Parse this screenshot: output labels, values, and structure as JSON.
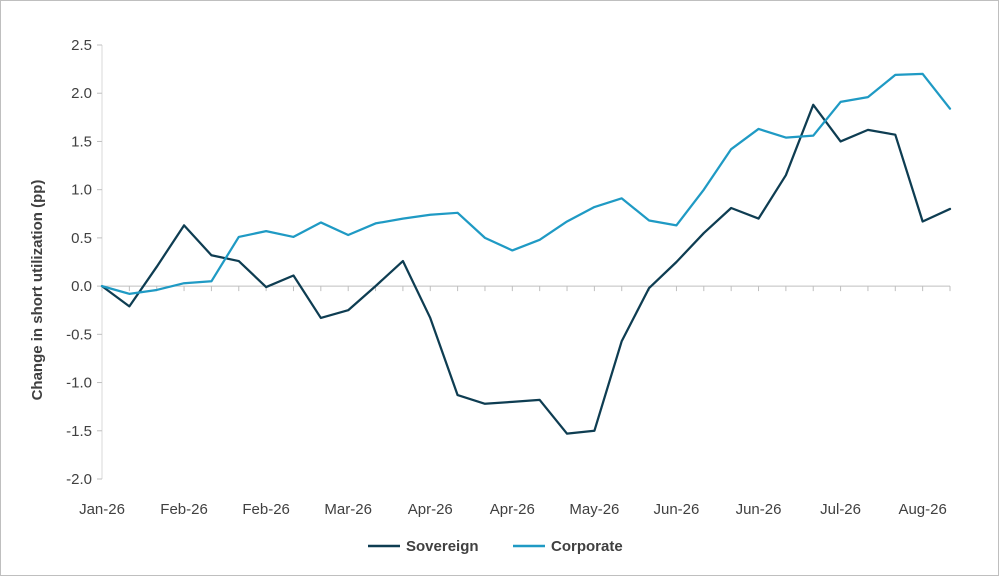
{
  "chart_data": {
    "type": "line",
    "title": "",
    "xlabel": "",
    "ylabel": "Change in short utilization (pp)",
    "ylim": [
      -2.0,
      2.5
    ],
    "y_ticks": [
      "2.5",
      "2.0",
      "1.5",
      "1.0",
      "0.5",
      "0.0",
      "-0.5",
      "-1.0",
      "-1.5",
      "-2.0"
    ],
    "x_tick_labels": [
      "Jan-26",
      "Feb-26",
      "Feb-26",
      "Mar-26",
      "Apr-26",
      "Apr-26",
      "May-26",
      "Jun-26",
      "Jun-26",
      "Jul-26",
      "Aug-26"
    ],
    "grid": false,
    "legend_position": "bottom",
    "series": [
      {
        "name": "Sovereign",
        "color": "#0e3d52",
        "values": [
          0.0,
          -0.21,
          0.2,
          0.63,
          0.32,
          0.26,
          -0.01,
          0.11,
          -0.33,
          -0.25,
          0.0,
          0.26,
          -0.33,
          -1.13,
          -1.22,
          -1.2,
          -1.18,
          -1.53,
          -1.5,
          -0.57,
          -0.02,
          0.25,
          0.55,
          0.81,
          0.7,
          1.15,
          1.88,
          1.5,
          1.62,
          1.57,
          0.67,
          0.8
        ]
      },
      {
        "name": "Corporate",
        "color": "#1f9ac4",
        "values": [
          0.0,
          -0.08,
          -0.04,
          0.03,
          0.05,
          0.51,
          0.57,
          0.51,
          0.66,
          0.53,
          0.65,
          0.7,
          0.74,
          0.76,
          0.5,
          0.37,
          0.48,
          0.67,
          0.82,
          0.91,
          0.68,
          0.63,
          1.0,
          1.42,
          1.63,
          1.54,
          1.56,
          1.91,
          1.96,
          2.19,
          2.2,
          1.84
        ]
      }
    ]
  }
}
